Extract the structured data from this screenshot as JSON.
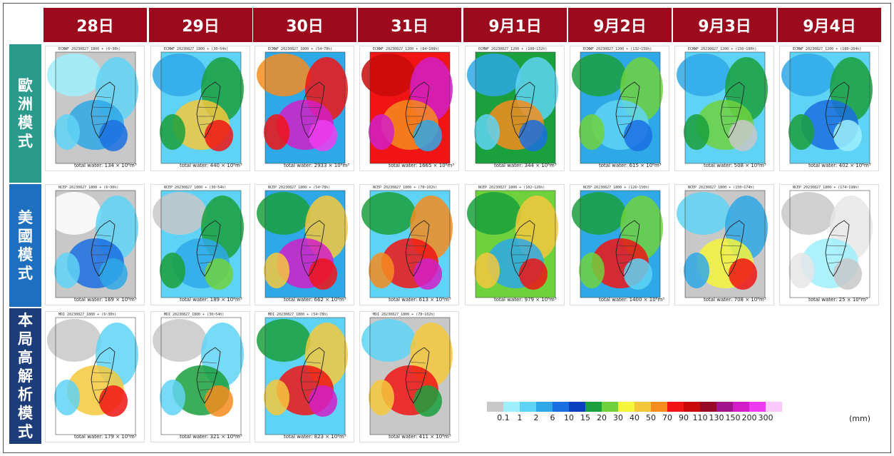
{
  "columns": [
    "28日",
    "29日",
    "30日",
    "31日",
    "9月1日",
    "9月2日",
    "9月3日",
    "9月4日"
  ],
  "rows": [
    {
      "label": "歐洲模式",
      "color": "#2a9a8c"
    },
    {
      "label": "美國模式",
      "color": "#1f6fc0"
    },
    {
      "label": "本局高解析模式",
      "color": "#1d3c7a"
    }
  ],
  "panels": {
    "ecmwf": [
      {
        "caption": "ECMWF 20230827_1800 + (6~30h)",
        "total": "total water: 134 × 10⁶m³"
      },
      {
        "caption": "ECMWF 20230827_1800 + (30~54h)",
        "total": "total water: 440 × 10⁶m³"
      },
      {
        "caption": "ECMWF 20230827_1800 + (54~78h)",
        "total": "total water: 2933 × 10⁶m³"
      },
      {
        "caption": "ECMWF 20230827_1200 + (84~108h)",
        "total": "total water: 1665 × 10⁶m³"
      },
      {
        "caption": "ECMWF 20230827_1200 + (108~132h)",
        "total": "total water: 344 × 10⁶m³"
      },
      {
        "caption": "ECMWF 20230827_1200 + (132~156h)",
        "total": "total water: 615 × 10⁶m³"
      },
      {
        "caption": "ECMWF 20230827_1200 + (156~180h)",
        "total": "total water: 508 × 10⁶m³"
      },
      {
        "caption": "ECMWF 20230827_1200 + (180~204h)",
        "total": "total water: 402 × 10⁶m³"
      }
    ],
    "ncep": [
      {
        "caption": "NCEP 20230827_1800 + (6~30h)",
        "total": "total water: 169 × 10⁶m³"
      },
      {
        "caption": "NCEP 20230827_1800 + (30~54h)",
        "total": "total water: 189 × 10⁶m³"
      },
      {
        "caption": "NCEP 20230827_1800 + (54~78h)",
        "total": "total water: 662 × 10⁶m³"
      },
      {
        "caption": "NCEP 20230827_1800 + (78~102h)",
        "total": "total water: 613 × 10⁶m³"
      },
      {
        "caption": "NCEP 20230827_1800 + (102~126h)",
        "total": "total water: 979 × 10⁶m³"
      },
      {
        "caption": "NCEP 20230827_1800 + (126~150h)",
        "total": "total water: 1400 × 10⁶m³"
      },
      {
        "caption": "NCEP 20230827_1800 + (150~174h)",
        "total": "total water: 708 × 10⁶m³"
      },
      {
        "caption": "NCEP 20230827_1800 + (174~198h)",
        "total": "total water: 25 × 10⁶m³"
      }
    ],
    "mdi": [
      {
        "caption": "MDI 20230827_1800 + (6~30h)",
        "total": "total water: 179 × 10⁶m³"
      },
      {
        "caption": "MDI 20230827_1800 + (30~54h)",
        "total": "total water: 321 × 10⁶m³"
      },
      {
        "caption": "MDI 20230827_1800 + (54~78h)",
        "total": "total water: 823 × 10⁶m³"
      },
      {
        "caption": "MDI 20230827_1800 + (78~102h)",
        "total": "total water: 411 × 10⁶m³"
      }
    ]
  },
  "legend": {
    "unit": "(mm)",
    "ticks": [
      "0.1",
      "1",
      "2",
      "6",
      "10",
      "15",
      "20",
      "30",
      "40",
      "50",
      "70",
      "90",
      "110",
      "130",
      "150",
      "200",
      "300"
    ],
    "colors": [
      "#c8c8c8",
      "#9eeefc",
      "#5fd3f5",
      "#2fa8e8",
      "#1a6fe0",
      "#0a3fc0",
      "#1aa03c",
      "#6fd23c",
      "#f5f53c",
      "#f5c83c",
      "#f58c1e",
      "#f01414",
      "#c80a0a",
      "#960a28",
      "#a0148c",
      "#d21ec8",
      "#f03cf0",
      "#fac8fa"
    ]
  }
}
